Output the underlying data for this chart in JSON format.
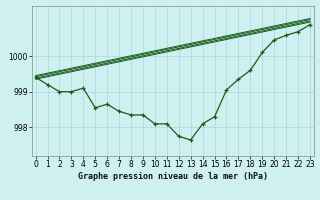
{
  "xlabel": "Graphe pression niveau de la mer (hPa)",
  "bg_color": "#cff0f0",
  "grid_color": "#aad8d8",
  "line_color": "#1a5c1a",
  "xticks": [
    0,
    1,
    2,
    3,
    4,
    5,
    6,
    7,
    8,
    9,
    10,
    11,
    12,
    13,
    14,
    15,
    16,
    17,
    18,
    19,
    20,
    21,
    22,
    23
  ],
  "yticks": [
    998,
    999,
    1000
  ],
  "ylim": [
    997.2,
    1001.4
  ],
  "xlim": [
    -0.3,
    23.3
  ],
  "main_data": [
    999.4,
    999.2,
    999.0,
    999.0,
    999.1,
    998.55,
    998.65,
    998.45,
    998.35,
    998.35,
    998.1,
    998.1,
    997.75,
    997.65,
    998.1,
    998.3,
    999.05,
    999.35,
    999.6,
    1000.1,
    1000.45,
    1000.58,
    1000.68,
    1000.88
  ],
  "trend_lines": [
    {
      "x": [
        0,
        23
      ],
      "y": [
        999.35,
        1000.95
      ]
    },
    {
      "x": [
        0,
        23
      ],
      "y": [
        999.38,
        1000.98
      ]
    },
    {
      "x": [
        0,
        23
      ],
      "y": [
        999.42,
        1001.02
      ]
    },
    {
      "x": [
        0,
        23
      ],
      "y": [
        999.45,
        1001.05
      ]
    }
  ],
  "tick_fontsize": 5.5,
  "xlabel_fontsize": 6.0
}
